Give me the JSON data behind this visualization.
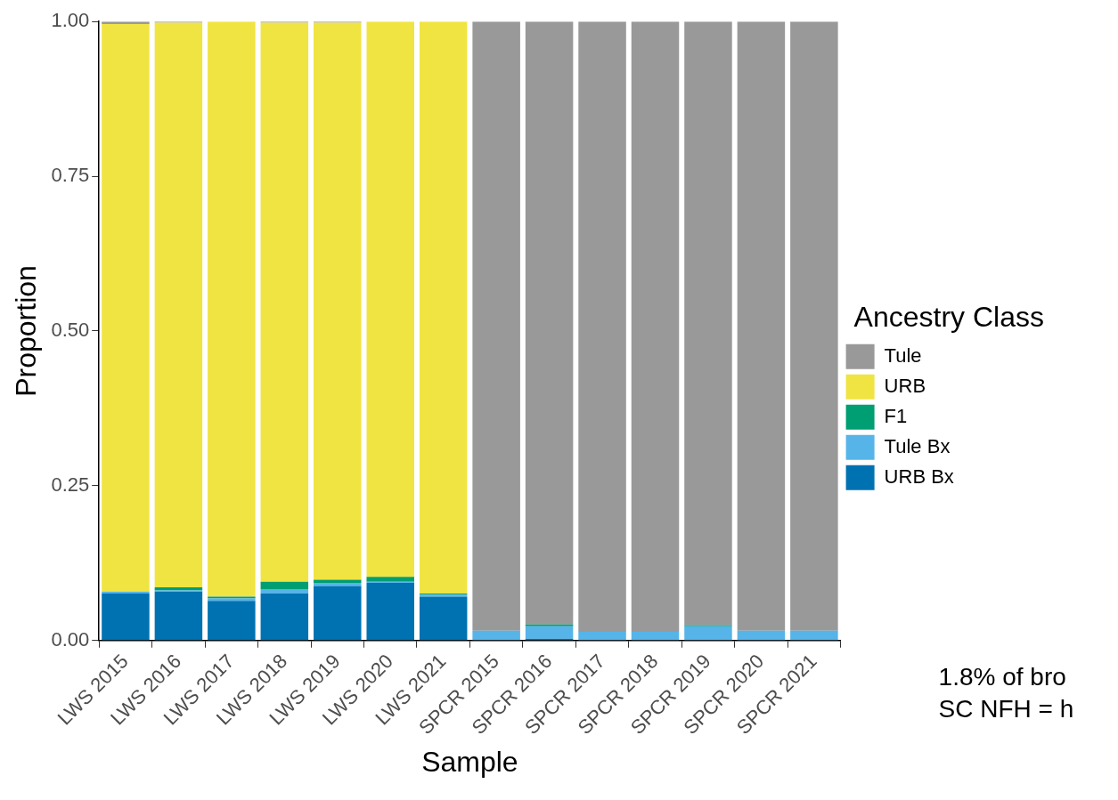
{
  "chart_data": {
    "type": "bar",
    "stacked": true,
    "xlabel": "Sample",
    "ylabel": "Proportion",
    "legend_title": "Ancestry Class",
    "legend": "right",
    "grid": false,
    "categories": [
      "LWS 2015",
      "LWS 2016",
      "LWS 2017",
      "LWS 2018",
      "LWS 2019",
      "LWS 2020",
      "LWS 2021",
      "SPCR 2015",
      "SPCR 2016",
      "SPCR 2017",
      "SPCR 2018",
      "SPCR 2019",
      "SPCR 2020",
      "SPCR 2021"
    ],
    "ylim": [
      0,
      1
    ],
    "yticks": [
      {
        "value": 0,
        "label": "0.00"
      },
      {
        "value": 0.25,
        "label": "0.25"
      },
      {
        "value": 0.5,
        "label": "0.50"
      },
      {
        "value": 0.75,
        "label": "0.75"
      },
      {
        "value": 1,
        "label": "1.00"
      }
    ],
    "series": [
      {
        "name": "URB Bx",
        "color": "#0072b2",
        "values": [
          0.076,
          0.079,
          0.064,
          0.076,
          0.088,
          0.093,
          0.071,
          0,
          0.003,
          0,
          0,
          0,
          0,
          0
        ]
      },
      {
        "name": "Tule Bx",
        "color": "#56b4e9",
        "values": [
          0.003,
          0.002,
          0.004,
          0.007,
          0.005,
          0.002,
          0.003,
          0.016,
          0.02,
          0.014,
          0.014,
          0.023,
          0.016,
          0.016
        ]
      },
      {
        "name": "F1",
        "color": "#009e73",
        "values": [
          0,
          0.005,
          0.003,
          0.012,
          0.005,
          0.008,
          0.002,
          0,
          0.003,
          0,
          0,
          0.002,
          0,
          0
        ]
      },
      {
        "name": "URB",
        "color": "#f0e442",
        "values": [
          0.917,
          0.912,
          0.929,
          0.903,
          0.9,
          0.897,
          0.924,
          0,
          0,
          0,
          0,
          0,
          0,
          0
        ]
      },
      {
        "name": "Tule",
        "color": "#999999",
        "values": [
          0.004,
          0.002,
          0,
          0.002,
          0.002,
          0,
          0,
          0.984,
          0.974,
          0.986,
          0.986,
          0.975,
          0.984,
          0.984
        ]
      }
    ],
    "annotations": [
      "1.8% of bro",
      "SC NFH = h"
    ]
  }
}
